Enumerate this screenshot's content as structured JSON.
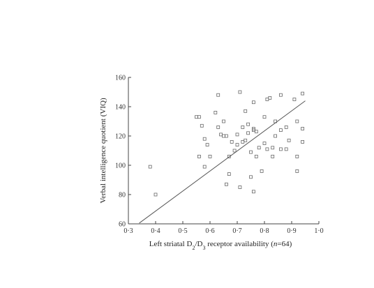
{
  "chart_data": {
    "type": "scatter",
    "xlabel_main": "Left striatal D",
    "xlabel_sub1": "2",
    "xlabel_mid": "/D",
    "xlabel_sub2": "3",
    "xlabel_rest": " receptor availability (",
    "xlabel_italic": "n",
    "xlabel_end": "=64)",
    "ylabel": "Verbal intelligence quotient (VIQ)",
    "xlim": [
      0.3,
      1.0
    ],
    "ylim": [
      60,
      160
    ],
    "x_ticks": [
      0.3,
      0.4,
      0.5,
      0.6,
      0.7,
      0.8,
      0.9,
      1.0
    ],
    "x_tick_labels": [
      "0·3",
      "0·4",
      "0·5",
      "0·6",
      "0·7",
      "0·8",
      "0·9",
      "1·0"
    ],
    "y_ticks": [
      60,
      80,
      100,
      120,
      140,
      160
    ],
    "y_tick_labels": [
      "60",
      "80",
      "100",
      "120",
      "140",
      "160"
    ],
    "grid": false,
    "marker": "open-square",
    "marker_color": "#666666",
    "line_color": "#555555",
    "regression_line": {
      "x": [
        0.34,
        0.95
      ],
      "y": [
        60.5,
        144
      ]
    },
    "points": [
      {
        "x": 0.38,
        "y": 99
      },
      {
        "x": 0.4,
        "y": 80
      },
      {
        "x": 0.55,
        "y": 133
      },
      {
        "x": 0.56,
        "y": 133
      },
      {
        "x": 0.56,
        "y": 106
      },
      {
        "x": 0.57,
        "y": 127
      },
      {
        "x": 0.58,
        "y": 99
      },
      {
        "x": 0.58,
        "y": 118
      },
      {
        "x": 0.59,
        "y": 114
      },
      {
        "x": 0.6,
        "y": 106
      },
      {
        "x": 0.62,
        "y": 136
      },
      {
        "x": 0.63,
        "y": 148
      },
      {
        "x": 0.63,
        "y": 126
      },
      {
        "x": 0.64,
        "y": 121
      },
      {
        "x": 0.65,
        "y": 130
      },
      {
        "x": 0.65,
        "y": 120
      },
      {
        "x": 0.66,
        "y": 120
      },
      {
        "x": 0.66,
        "y": 87
      },
      {
        "x": 0.67,
        "y": 106
      },
      {
        "x": 0.67,
        "y": 94
      },
      {
        "x": 0.68,
        "y": 116
      },
      {
        "x": 0.7,
        "y": 114
      },
      {
        "x": 0.7,
        "y": 121
      },
      {
        "x": 0.71,
        "y": 150
      },
      {
        "x": 0.71,
        "y": 85
      },
      {
        "x": 0.72,
        "y": 126
      },
      {
        "x": 0.72,
        "y": 116
      },
      {
        "x": 0.73,
        "y": 137
      },
      {
        "x": 0.73,
        "y": 117
      },
      {
        "x": 0.74,
        "y": 128
      },
      {
        "x": 0.74,
        "y": 122
      },
      {
        "x": 0.75,
        "y": 109
      },
      {
        "x": 0.75,
        "y": 92
      },
      {
        "x": 0.76,
        "y": 143
      },
      {
        "x": 0.76,
        "y": 125
      },
      {
        "x": 0.76,
        "y": 82
      },
      {
        "x": 0.77,
        "y": 123
      },
      {
        "x": 0.77,
        "y": 106
      },
      {
        "x": 0.78,
        "y": 112
      },
      {
        "x": 0.79,
        "y": 96
      },
      {
        "x": 0.8,
        "y": 133
      },
      {
        "x": 0.8,
        "y": 115
      },
      {
        "x": 0.81,
        "y": 111
      },
      {
        "x": 0.81,
        "y": 145
      },
      {
        "x": 0.82,
        "y": 146
      },
      {
        "x": 0.83,
        "y": 112
      },
      {
        "x": 0.83,
        "y": 106
      },
      {
        "x": 0.84,
        "y": 120
      },
      {
        "x": 0.84,
        "y": 130
      },
      {
        "x": 0.86,
        "y": 148
      },
      {
        "x": 0.86,
        "y": 124
      },
      {
        "x": 0.86,
        "y": 111
      },
      {
        "x": 0.88,
        "y": 126
      },
      {
        "x": 0.88,
        "y": 111
      },
      {
        "x": 0.89,
        "y": 117
      },
      {
        "x": 0.91,
        "y": 145
      },
      {
        "x": 0.92,
        "y": 130
      },
      {
        "x": 0.92,
        "y": 106
      },
      {
        "x": 0.92,
        "y": 96
      },
      {
        "x": 0.94,
        "y": 149
      },
      {
        "x": 0.94,
        "y": 125
      },
      {
        "x": 0.94,
        "y": 116
      },
      {
        "x": 0.76,
        "y": 124
      },
      {
        "x": 0.69,
        "y": 110
      }
    ]
  }
}
